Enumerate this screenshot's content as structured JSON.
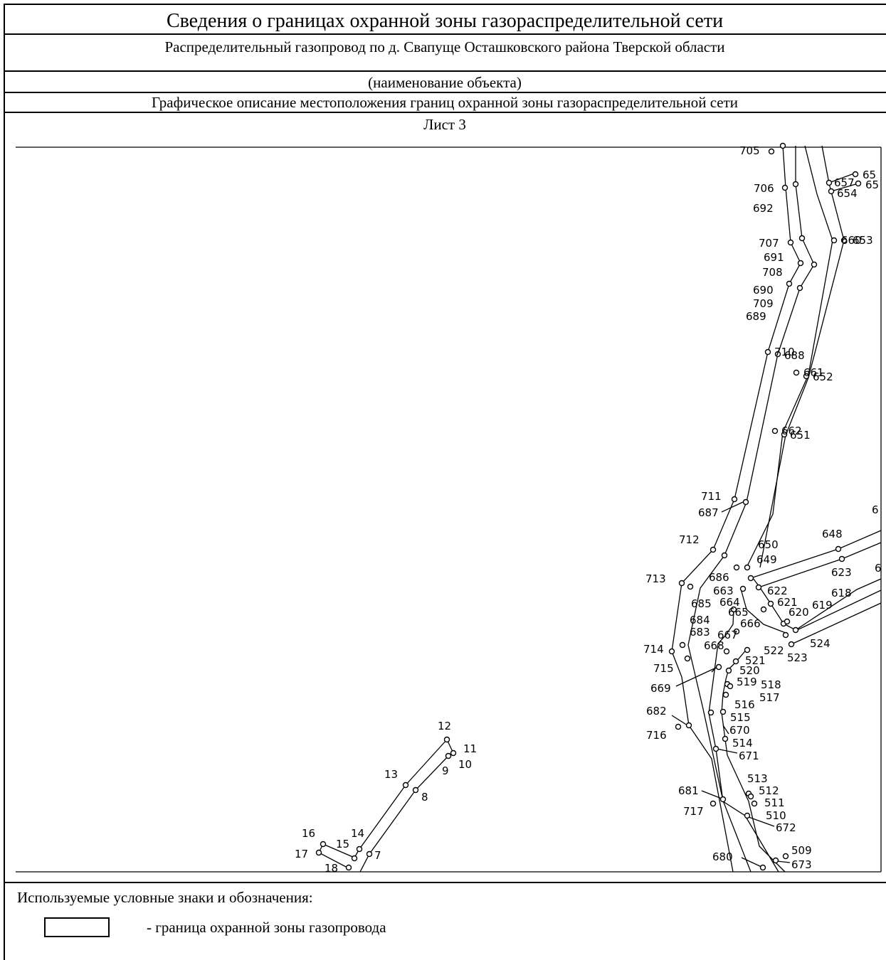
{
  "header": {
    "title": "Сведения о границах охранной зоны газораспределительной сети",
    "object": "Распределительный газопровод по д. Свапуще Осташковского района Тверской области",
    "object_caption": "(наименование объекта)",
    "graphic_caption": "Графическое описание местоположения границ охранной зоны газораспределительной сети",
    "sheet": "Лист 3"
  },
  "map_labels": {
    "l705": "705",
    "l706": "706",
    "l692": "692",
    "l707": "707",
    "l691": "691",
    "l708": "708",
    "l690": "690",
    "l709": "709",
    "l689": "689",
    "l710": "710",
    "l688": "688",
    "l661": "661",
    "l652": "652",
    "l662": "662",
    "l651": "651",
    "l65a": "65",
    "l65b": "65",
    "l657": "657",
    "l654": "654",
    "l660": "660",
    "l653": "653",
    "l711": "711",
    "l687": "687",
    "l712": "712",
    "l713": "713",
    "l6": "6",
    "l650": "650",
    "l649": "649",
    "l648": "648",
    "l623": "623",
    "l6b": "6",
    "l686": "686",
    "l663": "663",
    "l622": "622",
    "l621": "621",
    "l620": "620",
    "l619": "619",
    "l618": "618",
    "l685": "685",
    "l664": "664",
    "l665": "665",
    "l666": "666",
    "l684": "684",
    "l683": "683",
    "l667": "667",
    "l668": "668",
    "l524": "524",
    "l522": "522",
    "l523": "523",
    "l521": "521",
    "l714": "714",
    "l715": "715",
    "l520": "520",
    "l519": "519",
    "l518": "518",
    "l669": "669",
    "l517": "517",
    "l516": "516",
    "l515": "515",
    "l682": "682",
    "l670": "670",
    "l716": "716",
    "l514": "514",
    "l671": "671",
    "l513": "513",
    "l512": "512",
    "l511": "511",
    "l681": "681",
    "l510": "510",
    "l717": "717",
    "l672": "672",
    "l509": "509",
    "l680": "680",
    "l673": "673",
    "l12": "12",
    "l11": "11",
    "l10": "10",
    "l9": "9",
    "l13": "13",
    "l8": "8",
    "l14": "14",
    "l16": "16",
    "l15": "15",
    "l7": "7",
    "l17": "17",
    "l18": "18"
  },
  "legend": {
    "title": "Используемые условные знаки и обозначения:",
    "items": [
      {
        "label": "- граница охранной зоны газопровода"
      }
    ]
  }
}
